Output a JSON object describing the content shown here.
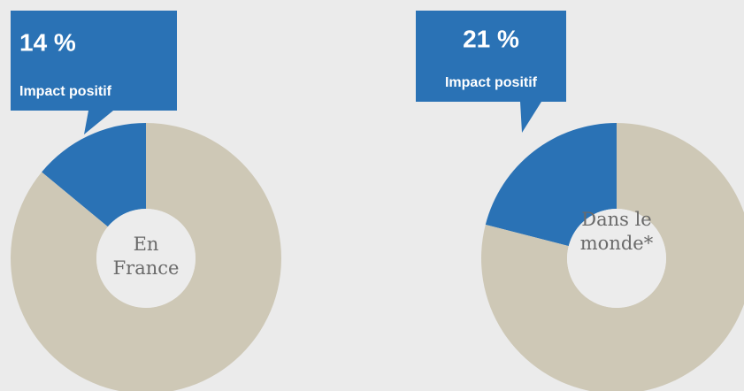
{
  "chart_data": [
    {
      "type": "pie",
      "title": "En France",
      "categories": [
        "Impact positif",
        null
      ],
      "values": [
        14,
        86
      ],
      "value_labels": [
        "14 %",
        null
      ],
      "colors": [
        "#2a72b5",
        "#cec8b6"
      ]
    },
    {
      "type": "pie",
      "title": "Dans le monde*",
      "categories": [
        "Impact positif",
        null
      ],
      "values": [
        21,
        79
      ],
      "value_labels": [
        "21 %",
        null
      ],
      "colors": [
        "#2a72b5",
        "#cec8b6"
      ]
    }
  ]
}
